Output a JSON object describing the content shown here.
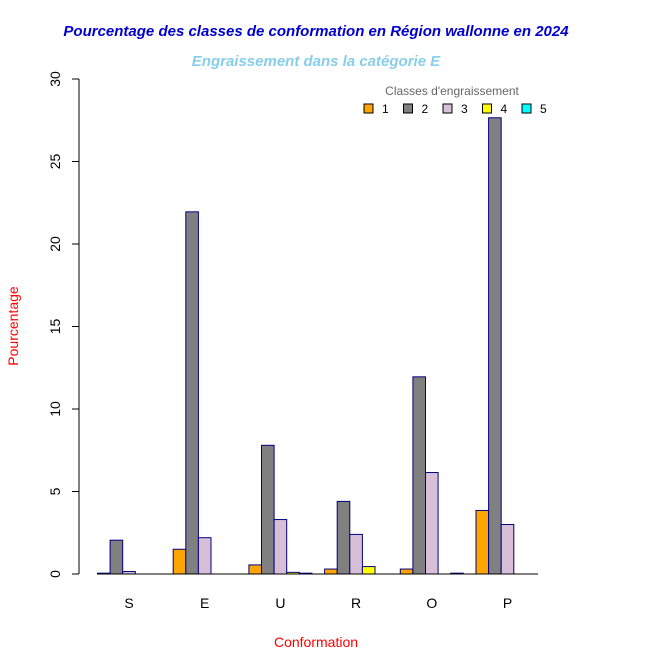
{
  "chart_data": {
    "type": "bar",
    "title": "Pourcentage des classes de conformation en Région wallonne en 2024",
    "subtitle": "Engraissement dans la catégorie E",
    "xlabel": "Conformation",
    "ylabel": "Pourcentage",
    "ylim": [
      0,
      30
    ],
    "yticks": [
      0,
      5,
      10,
      15,
      20,
      25,
      30
    ],
    "categories": [
      "S",
      "E",
      "U",
      "R",
      "O",
      "P"
    ],
    "legend_title": "Classes d'engraissement",
    "legend_position": "top-right",
    "series": [
      {
        "name": "1",
        "color": "#FFA500",
        "values": [
          0.05,
          1.5,
          0.55,
          0.3,
          0.3,
          3.85
        ]
      },
      {
        "name": "2",
        "color": "#808080",
        "values": [
          2.05,
          21.95,
          7.8,
          4.4,
          11.95,
          27.65
        ]
      },
      {
        "name": "3",
        "color": "#D8BFD8",
        "values": [
          0.15,
          2.2,
          3.3,
          2.4,
          6.15,
          3.0
        ]
      },
      {
        "name": "4",
        "color": "#FFFF00",
        "values": [
          0.0,
          0.0,
          0.1,
          0.45,
          0.0,
          0.0
        ]
      },
      {
        "name": "5",
        "color": "#00FFFF",
        "values": [
          0.0,
          0.0,
          0.05,
          0.0,
          0.05,
          0.0
        ]
      }
    ],
    "colors": {
      "title": "#0000CD",
      "subtitle": "#87CEEB",
      "axis_title": "#FF0000",
      "bar_border": "#000080"
    }
  }
}
